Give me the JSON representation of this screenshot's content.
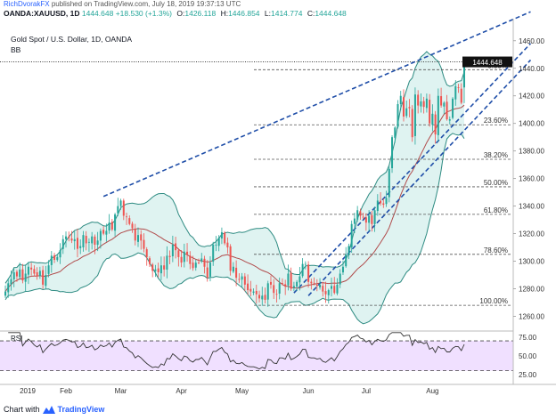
{
  "header": {
    "author": "RichDvorakFX",
    "published_text": "published on TradingView.com, July 18, 2019 19:37:13 UTC"
  },
  "ohlc": {
    "symbol": "OANDA:XAUUSD, 1D",
    "last": "1444.648",
    "change": "+18.530 (+1.3%)",
    "o_label": "O:",
    "o": "1426.118",
    "h_label": "H:",
    "h": "1446.854",
    "l_label": "L:",
    "l": "1414.774",
    "c_label": "C:",
    "c": "1444.648"
  },
  "chart_title": "Gold Spot / U.S. Dollar, 1D, OANDA",
  "indicator_label": "BB",
  "rsi_label": "RSI",
  "price_badge": "1444.648",
  "footer": {
    "prefix": "Chart with",
    "brand": "TradingView",
    "logo_icon": "tradingview-logo-icon"
  },
  "colors": {
    "up": "#26a69a",
    "down": "#ef5350",
    "bb_fill": "#d4efec",
    "bb_band": "#2e8b82",
    "bb_mid": "#b04a4a",
    "trend": "#1f4ea8",
    "rsi_fill": "#f0e0ff",
    "rsi_line": "#333333"
  },
  "chart_data": [
    {
      "type": "candlestick",
      "title": "Gold Spot / U.S. Dollar, 1D, OANDA",
      "x_ticks": [
        "2019",
        "Feb",
        "Mar",
        "Apr",
        "May",
        "Jun",
        "Jul",
        "Aug"
      ],
      "y_ticks": [
        1260,
        1280,
        1300,
        1320,
        1340,
        1360,
        1380,
        1400,
        1420,
        1440,
        1460
      ],
      "ylim": [
        1250,
        1476
      ],
      "last_price": 1444.648,
      "closes": [
        1278,
        1284,
        1287,
        1292,
        1289,
        1294,
        1286,
        1291,
        1296,
        1294,
        1291,
        1289,
        1293,
        1283,
        1290,
        1297,
        1304,
        1301,
        1303,
        1308,
        1316,
        1318,
        1317,
        1315,
        1316,
        1309,
        1311,
        1319,
        1313,
        1314,
        1318,
        1312,
        1315,
        1322,
        1320,
        1322,
        1328,
        1323,
        1334,
        1340,
        1344,
        1333,
        1332,
        1327,
        1324,
        1315,
        1319,
        1315,
        1309,
        1303,
        1298,
        1293,
        1294,
        1292,
        1297,
        1294,
        1304,
        1303,
        1312,
        1308,
        1303,
        1299,
        1307,
        1305,
        1298,
        1295,
        1299,
        1299,
        1302,
        1296,
        1288,
        1299,
        1312,
        1312,
        1317,
        1321,
        1313,
        1310,
        1293,
        1296,
        1288,
        1287,
        1289,
        1283,
        1279,
        1278,
        1278,
        1276,
        1273,
        1275,
        1272,
        1284,
        1283,
        1277,
        1276,
        1284,
        1284,
        1282,
        1291,
        1280,
        1282,
        1285,
        1289,
        1298,
        1298,
        1285,
        1284,
        1284,
        1282,
        1283,
        1278,
        1276,
        1279,
        1282,
        1277,
        1283,
        1291,
        1296,
        1305,
        1311,
        1327,
        1331,
        1337,
        1333,
        1332,
        1328,
        1333,
        1327,
        1337,
        1344,
        1342,
        1341,
        1346,
        1367,
        1390,
        1397,
        1414,
        1420,
        1405,
        1411,
        1411,
        1390,
        1421,
        1413,
        1416,
        1412,
        1418,
        1400,
        1407,
        1392,
        1420,
        1413,
        1415,
        1403,
        1403,
        1418,
        1427,
        1426,
        1415,
        1444.648
      ],
      "fibonacci_levels": [
        {
          "label": "0.00%",
          "value": 1439
        },
        {
          "label": "23.60%",
          "value": 1399
        },
        {
          "label": "38.20%",
          "value": 1374
        },
        {
          "label": "50.00%",
          "value": 1354
        },
        {
          "label": "61.80%",
          "value": 1334
        },
        {
          "label": "78.60%",
          "value": 1305
        },
        {
          "label": "100.00%",
          "value": 1268
        }
      ],
      "trendlines": [
        {
          "style": "dashed",
          "from": {
            "bar": 34,
            "price": 1347
          },
          "to": {
            "bar": 182,
            "price": 1481
          }
        },
        {
          "style": "dashed",
          "from": {
            "bar": 100,
            "price": 1277
          },
          "to": {
            "bar": 182,
            "price": 1458
          }
        },
        {
          "style": "dashed",
          "from": {
            "bar": 105,
            "price": 1275
          },
          "to": {
            "bar": 182,
            "price": 1446
          }
        }
      ],
      "bollinger_bands": {
        "period": 20,
        "stddev": 2
      }
    },
    {
      "type": "line",
      "title": "RSI",
      "y_ticks": [
        25,
        50,
        75
      ],
      "ylim": [
        20,
        82
      ],
      "levels": [
        30,
        70
      ],
      "series": [
        {
          "values": "computed from closes, period 14"
        }
      ]
    }
  ]
}
